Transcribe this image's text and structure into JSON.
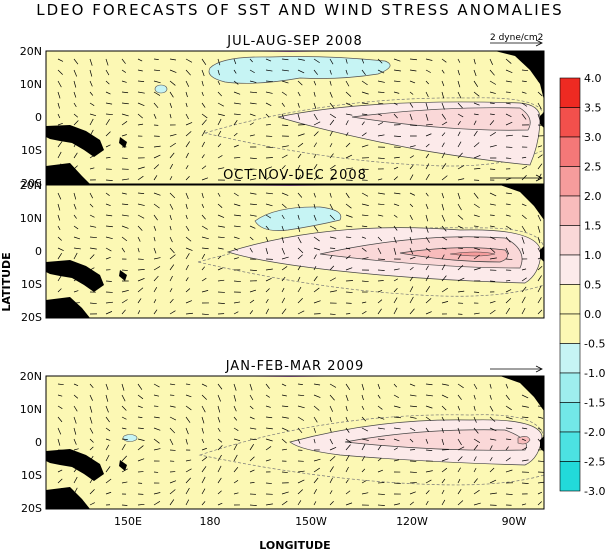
{
  "title": "LDEO FORECASTS OF SST AND WIND STRESS ANOMALIES",
  "xlabel": "LONGITUDE",
  "ylabel": "LATITUDE",
  "reference_vector_label": "2 dyne/cm2",
  "lat_ticks": [
    "20N",
    "10N",
    "0",
    "10S",
    "20S"
  ],
  "lon_ticks": [
    "150E",
    "180",
    "150W",
    "120W",
    "90W"
  ],
  "panels": [
    {
      "title": "JUL-AUG-SEP 2008"
    },
    {
      "title": "OCT-NOV-DEC 2008"
    },
    {
      "title": "JAN-FEB-MAR 2009"
    }
  ],
  "colorbar": {
    "labels": [
      "4.0",
      "3.5",
      "3.0",
      "2.5",
      "2.0",
      "1.5",
      "1.0",
      "0.5",
      "0.0",
      "-0.5",
      "-1.0",
      "-1.5",
      "-2.0",
      "-2.5",
      "-3.0"
    ],
    "colors": [
      "#ee2a22",
      "#f2504c",
      "#f47878",
      "#f69c9c",
      "#f8bcbc",
      "#fad8d8",
      "#fceaea",
      "#fcf8b4",
      "#fcf8b4",
      "#c6f4f4",
      "#9eeeee",
      "#72e8e8",
      "#4ce2e2",
      "#22dada"
    ]
  },
  "chart_data": {
    "type": "heatmap",
    "variable": "SST and wind stress anomalies",
    "units": "dyne/cm2",
    "x_ticks": [
      "150E",
      "180",
      "150W",
      "120W",
      "90W"
    ],
    "y_ticks": [
      "20N",
      "10N",
      "0",
      "10S",
      "20S"
    ],
    "color_levels": [
      -3.0,
      -2.5,
      -2.0,
      -1.5,
      -1.0,
      -0.5,
      0.0,
      0.5,
      1.0,
      1.5,
      2.0,
      2.5,
      3.0,
      3.5,
      4.0
    ],
    "panels": [
      {
        "period": "JUL-AUG-SEP 2008",
        "max_anomaly_approx": 1.5,
        "min_anomaly_approx": -0.5
      },
      {
        "period": "OCT-NOV-DEC 2008",
        "max_anomaly_approx": 2.0,
        "min_anomaly_approx": -0.5
      },
      {
        "period": "JAN-FEB-MAR 2009",
        "max_anomaly_approx": 2.0,
        "min_anomaly_approx": -0.5
      }
    ]
  }
}
